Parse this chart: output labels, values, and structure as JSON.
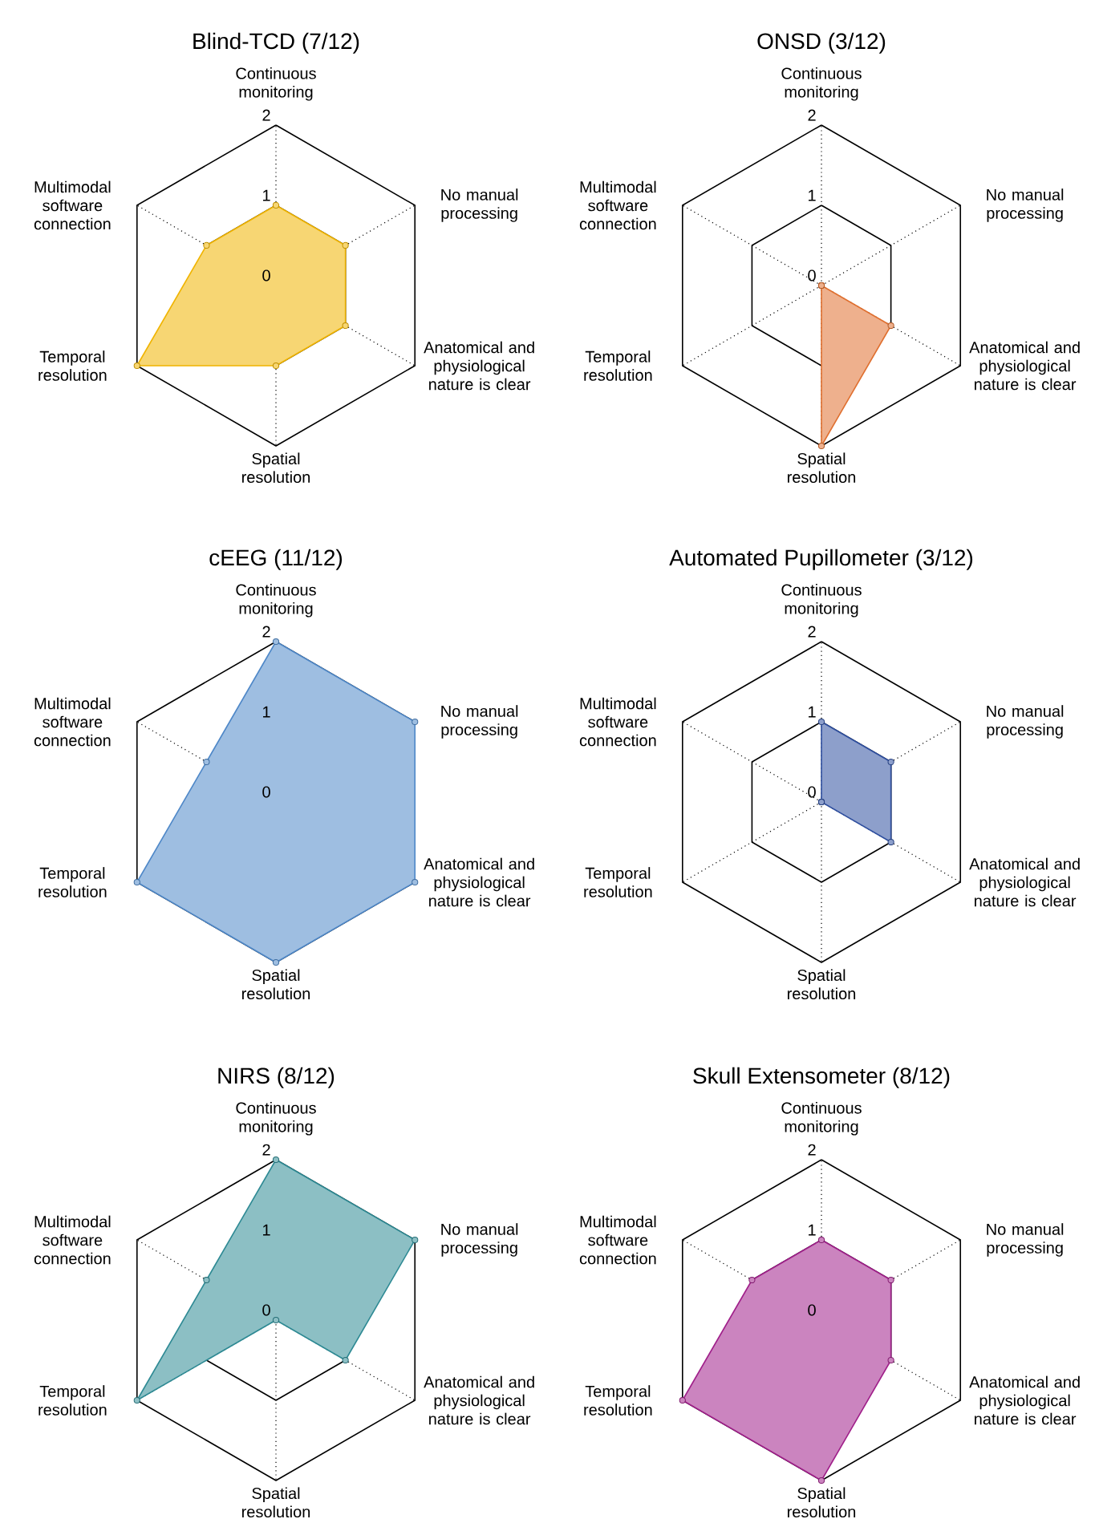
{
  "chart_data": [
    {
      "type": "radar",
      "title": "Blind-TCD (7/12)",
      "categories": [
        "Continuous monitoring",
        "No manual processing",
        "Anatomical and physiological nature is clear",
        "Spatial resolution",
        "Temporal resolution",
        "Multimodal software connection"
      ],
      "ylim": [
        0,
        2
      ],
      "yticks": [
        0,
        1,
        2
      ],
      "grid": true,
      "marker": "circle",
      "series": [
        {
          "color": "#f0b400",
          "values": [
            1,
            1,
            1,
            1,
            2,
            1
          ]
        }
      ]
    },
    {
      "type": "radar",
      "title": "ONSD (3/12)",
      "categories": [
        "Continuous monitoring",
        "No manual processing",
        "Anatomical and physiological nature is clear",
        "Spatial resolution",
        "Temporal resolution",
        "Multimodal software connection"
      ],
      "ylim": [
        0,
        2
      ],
      "yticks": [
        0,
        1,
        2
      ],
      "grid": true,
      "marker": "circle",
      "series": [
        {
          "color": "#e07030",
          "values": [
            0,
            0,
            1,
            2,
            0,
            0
          ]
        }
      ]
    },
    {
      "type": "radar",
      "title": "cEEG (11/12)",
      "categories": [
        "Continuous monitoring",
        "No manual processing",
        "Anatomical and physiological nature is clear",
        "Spatial resolution",
        "Temporal resolution",
        "Multimodal software connection"
      ],
      "ylim": [
        0,
        2
      ],
      "yticks": [
        0,
        1,
        2
      ],
      "grid": true,
      "marker": "circle",
      "series": [
        {
          "color": "#4f88c8",
          "values": [
            2,
            2,
            2,
            2,
            2,
            1
          ]
        }
      ]
    },
    {
      "type": "radar",
      "title": "Automated Pupillometer (3/12)",
      "categories": [
        "Continuous monitoring",
        "No manual processing",
        "Anatomical and physiological nature is clear",
        "Spatial resolution",
        "Temporal resolution",
        "Multimodal software connection"
      ],
      "ylim": [
        0,
        2
      ],
      "yticks": [
        0,
        1,
        2
      ],
      "grid": true,
      "marker": "circle",
      "series": [
        {
          "color": "#3050a0",
          "values": [
            1,
            1,
            1,
            0,
            0,
            0
          ]
        }
      ]
    },
    {
      "type": "radar",
      "title": "NIRS (8/12)",
      "categories": [
        "Continuous monitoring",
        "No manual processing",
        "Anatomical and physiological nature is clear",
        "Spatial resolution",
        "Temporal resolution",
        "Multimodal software connection"
      ],
      "ylim": [
        0,
        2
      ],
      "yticks": [
        0,
        1,
        2
      ],
      "grid": true,
      "marker": "circle",
      "series": [
        {
          "color": "#2e8a94",
          "values": [
            2,
            2,
            1,
            0,
            2,
            1
          ]
        }
      ]
    },
    {
      "type": "radar",
      "title": "Skull Extensometer (8/12)",
      "categories": [
        "Continuous monitoring",
        "No manual processing",
        "Anatomical and physiological nature is clear",
        "Spatial resolution",
        "Temporal resolution",
        "Multimodal software connection"
      ],
      "ylim": [
        0,
        2
      ],
      "yticks": [
        0,
        1,
        2
      ],
      "grid": true,
      "marker": "circle",
      "series": [
        {
          "color": "#a0208a",
          "values": [
            1,
            1,
            1,
            2,
            2,
            1
          ]
        }
      ]
    }
  ]
}
